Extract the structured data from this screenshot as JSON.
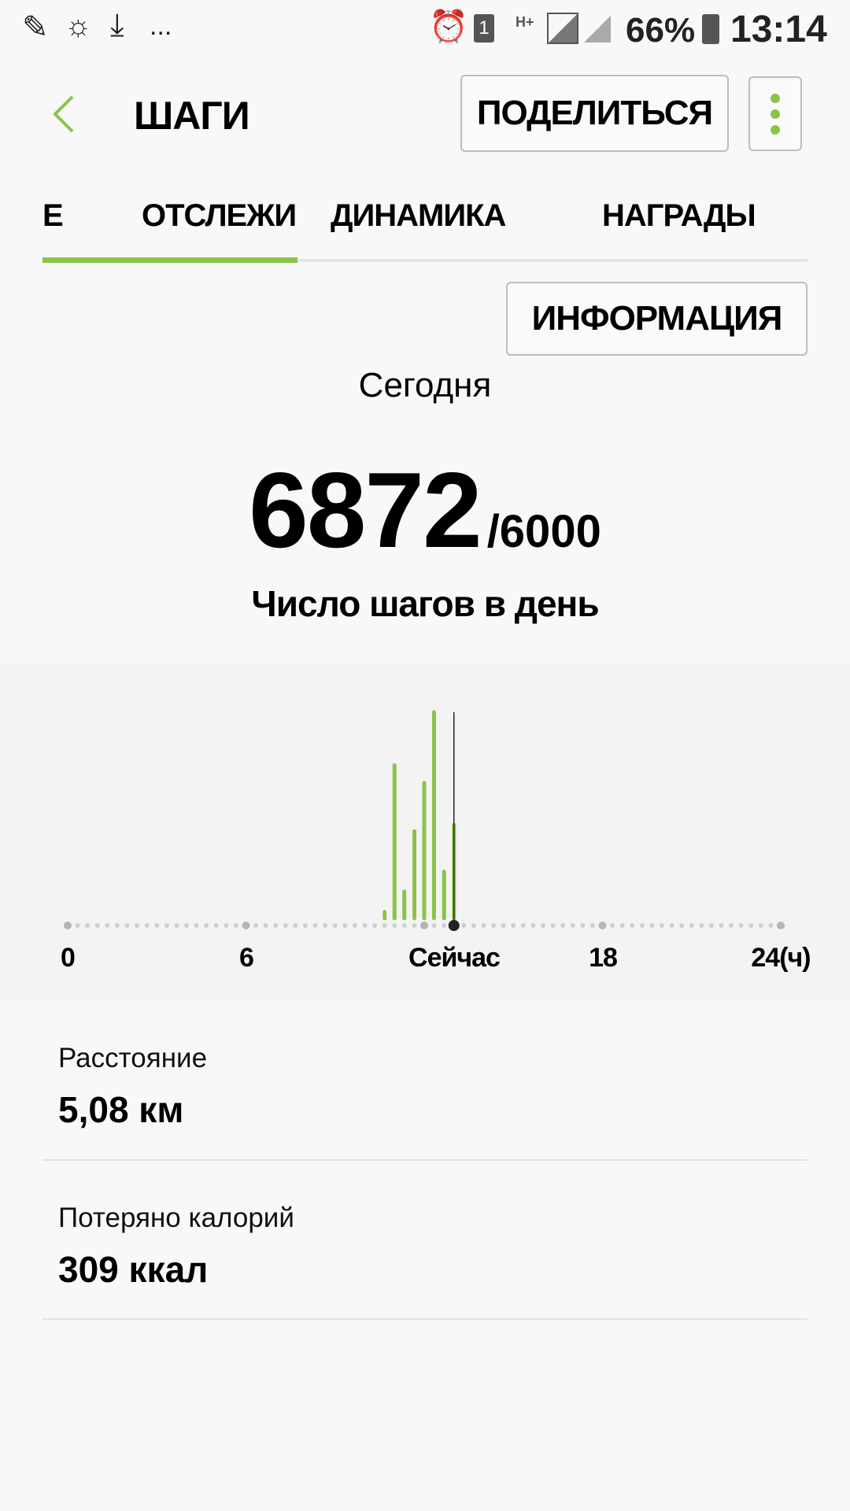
{
  "status_bar": {
    "battery": "66%",
    "time": "13:14",
    "network": "H+",
    "sim": "1",
    "more": "..."
  },
  "header": {
    "title": "ШАГИ",
    "share_label": "ПОДЕЛИТЬСЯ"
  },
  "tabs": [
    {
      "label": "Е"
    },
    {
      "label": "ОТСЛЕЖИ",
      "active": true
    },
    {
      "label": "ДИНАМИКА"
    },
    {
      "label": "НАГРАДЫ"
    }
  ],
  "info_label": "ИНФОРМАЦИЯ",
  "summary": {
    "period": "Сегодня",
    "steps": "6872",
    "goal": "/6000",
    "caption": "Число шагов в день"
  },
  "colors": {
    "accent": "#8bc34a",
    "now_marker": "#222222"
  },
  "chart_data": {
    "type": "bar",
    "x_unit": "ч",
    "xlim": [
      0,
      24
    ],
    "tick_labels": [
      "0",
      "6",
      "Сейчас",
      "18",
      "24(ч)"
    ],
    "x": [
      10.67,
      11.0,
      11.33,
      11.67,
      12.0,
      12.33,
      12.67,
      13.0
    ],
    "values": [
      58,
      1392,
      245,
      793,
      1233,
      1875,
      425,
      851
    ],
    "now_label": "Сейчас",
    "grid": false
  },
  "stats": [
    {
      "label": "Расстояние",
      "value": "5,08 км"
    },
    {
      "label": "Потеряно калорий",
      "value": "309 ккал"
    }
  ]
}
